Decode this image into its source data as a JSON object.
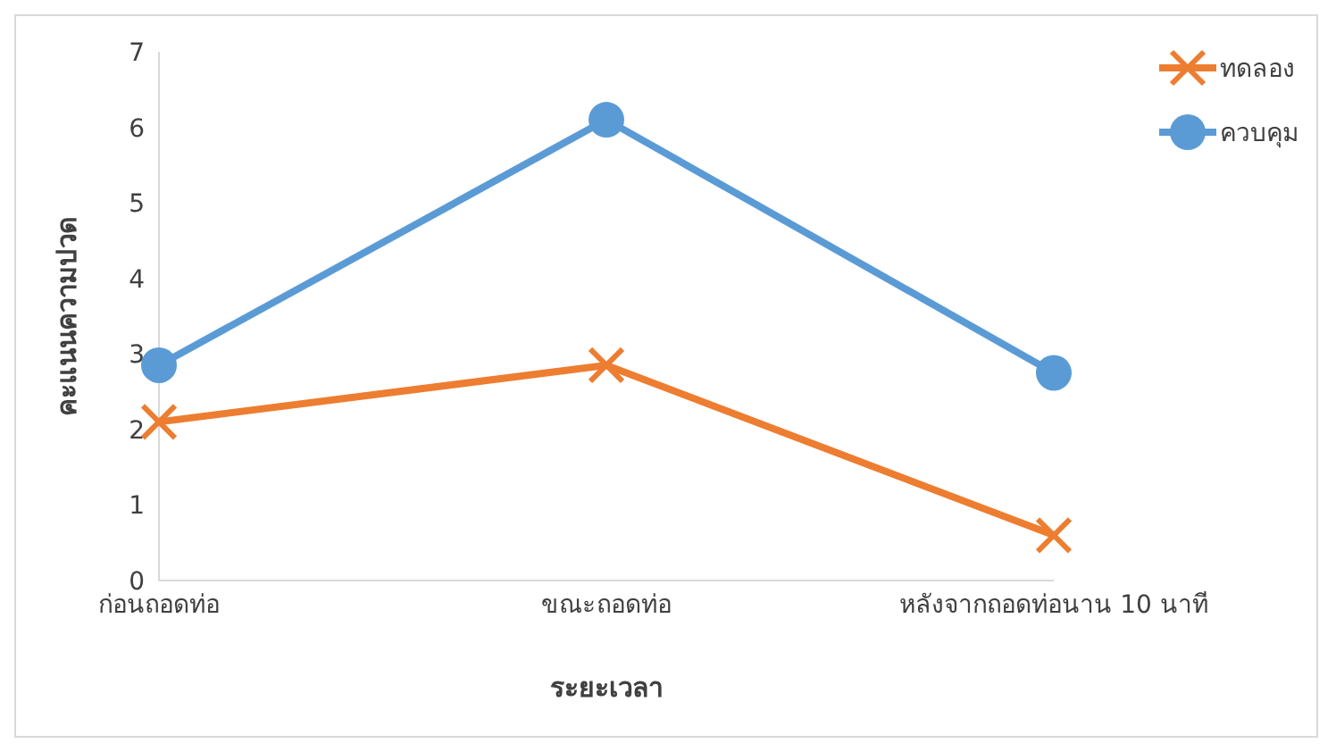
{
  "chart_data": {
    "type": "line",
    "xlabel": "ระยะเวลา",
    "ylabel": "คะแนนความปวด",
    "categories": [
      "ก่อนถอดท่อ",
      "ขณะถอดท่อ",
      "หลังจากถอดท่อนาน  10 นาที"
    ],
    "series": [
      {
        "name": "ทดลอง",
        "color": "#ed7d31",
        "values": [
          2.1,
          2.85,
          0.6
        ],
        "marker": "cross"
      },
      {
        "name": "ควบคุม",
        "color": "#5b9bd5",
        "values": [
          2.85,
          6.1,
          2.75
        ],
        "marker": "circle"
      }
    ],
    "ylim": [
      0,
      7
    ],
    "yticks": [
      0,
      1,
      2,
      3,
      4,
      5,
      6,
      7
    ],
    "grid": false,
    "legend": "top right"
  }
}
